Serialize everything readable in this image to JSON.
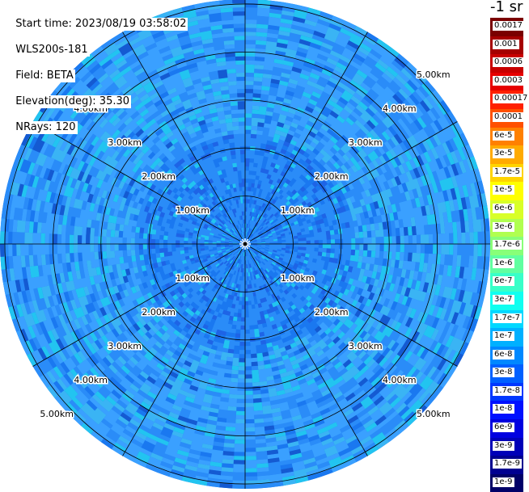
{
  "header": {
    "start_time": "Start time: 2023/08/19 03:58:02",
    "instrument": "WLS200s-181",
    "field": "Field: BETA",
    "elevation": "Elevation(deg): 35.30",
    "nrays": "NRays: 120"
  },
  "colorbar": {
    "units_label": "-1 sr",
    "entries": [
      {
        "label": "0.0017",
        "color": "#7a0000"
      },
      {
        "label": "0.001",
        "color": "#a50000"
      },
      {
        "label": "0.0006",
        "color": "#c80000"
      },
      {
        "label": "0.0003",
        "color": "#e60000"
      },
      {
        "label": "0.00017",
        "color": "#ff2000"
      },
      {
        "label": "0.0001",
        "color": "#ff5000"
      },
      {
        "label": "6e-5",
        "color": "#ff8000"
      },
      {
        "label": "3e-5",
        "color": "#ffaa00"
      },
      {
        "label": "1.7e-5",
        "color": "#ffd400"
      },
      {
        "label": "1e-5",
        "color": "#ffff00"
      },
      {
        "label": "6e-6",
        "color": "#d8ff28"
      },
      {
        "label": "3e-6",
        "color": "#b0ff50"
      },
      {
        "label": "1.7e-6",
        "color": "#88ff78"
      },
      {
        "label": "1e-6",
        "color": "#60ffa0"
      },
      {
        "label": "6e-7",
        "color": "#38ffc8"
      },
      {
        "label": "3e-7",
        "color": "#10fff0"
      },
      {
        "label": "1.7e-7",
        "color": "#00d8ff"
      },
      {
        "label": "1e-7",
        "color": "#00b0ff"
      },
      {
        "label": "6e-8",
        "color": "#0088ff"
      },
      {
        "label": "3e-8",
        "color": "#0060ff"
      },
      {
        "label": "1.7e-8",
        "color": "#0038ff"
      },
      {
        "label": "1e-8",
        "color": "#0010ff"
      },
      {
        "label": "6e-9",
        "color": "#0000e0"
      },
      {
        "label": "3e-9",
        "color": "#0000b8"
      },
      {
        "label": "1.7e-9",
        "color": "#000090"
      },
      {
        "label": "1e-9",
        "color": "#000068"
      }
    ]
  },
  "map": {
    "range_ring_labels": [
      "1.00km",
      "2.00km",
      "3.00km",
      "4.00km",
      "5.00km"
    ],
    "ring_km": [
      1,
      2,
      3,
      4,
      5
    ],
    "max_range_km": 5.1,
    "azimuth_line_step_deg": 30,
    "field_colors": [
      "#1a78f0",
      "#2a8cf8",
      "#3aa0ff",
      "#1e64e6",
      "#3ab4f4",
      "#22c4f0",
      "#145ad2"
    ]
  }
}
